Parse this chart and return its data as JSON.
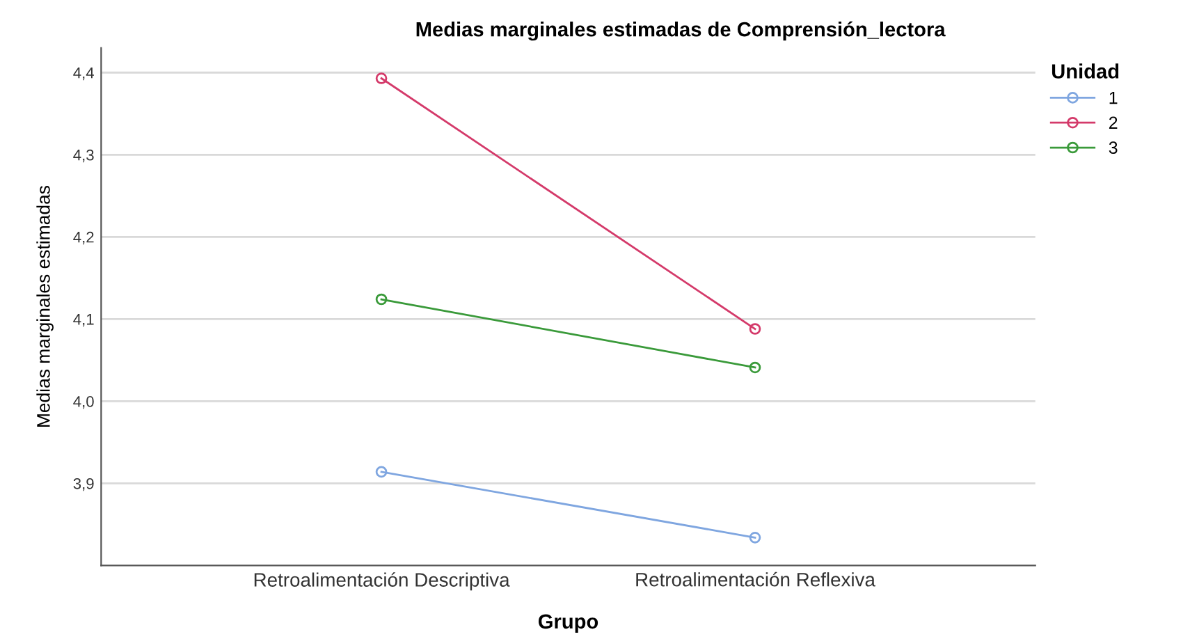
{
  "chart_data": {
    "type": "line",
    "title": "Medias marginales estimadas de Comprensión_lectora",
    "xlabel": "Grupo",
    "ylabel": "Medias marginales estimadas",
    "legend_title": "Unidad",
    "categories": [
      "Retroalimentación Descriptiva",
      "Retroalimentación Reflexiva"
    ],
    "series": [
      {
        "name": "1",
        "color": "#7fa6e0",
        "values": [
          3.914,
          3.834
        ]
      },
      {
        "name": "2",
        "color": "#d43a6a",
        "values": [
          4.393,
          4.088
        ]
      },
      {
        "name": "3",
        "color": "#3a9a3a",
        "values": [
          4.124,
          4.041
        ]
      }
    ],
    "ylim": [
      3.8,
      4.43
    ],
    "yticks": [
      {
        "value": 3.9,
        "label": "3,9"
      },
      {
        "value": 4.0,
        "label": "4,0"
      },
      {
        "value": 4.1,
        "label": "4,1"
      },
      {
        "value": 4.2,
        "label": "4,2"
      },
      {
        "value": 4.3,
        "label": "4,3"
      },
      {
        "value": 4.4,
        "label": "4,4"
      }
    ],
    "grid": "y",
    "legend": "top right",
    "marker": "circle"
  }
}
